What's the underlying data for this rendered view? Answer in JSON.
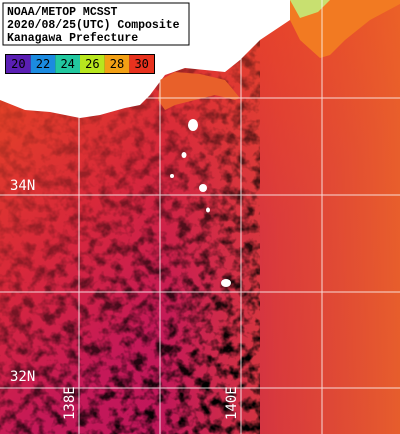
{
  "header": {
    "lines": [
      "NOAA/METOP MCSST",
      "2020/08/25(UTC) Composite",
      "Kanagawa Prefecture"
    ]
  },
  "colorbar": {
    "ticks": [
      20,
      22,
      24,
      26,
      28,
      30
    ],
    "colors": [
      "#5a1fb4",
      "#1b8be0",
      "#22c8a0",
      "#b8e61e",
      "#f2a014",
      "#e8321e"
    ]
  },
  "grid_labels": {
    "lat": [
      "34N",
      "32N"
    ],
    "lon": [
      "138E",
      "140E"
    ]
  }
}
